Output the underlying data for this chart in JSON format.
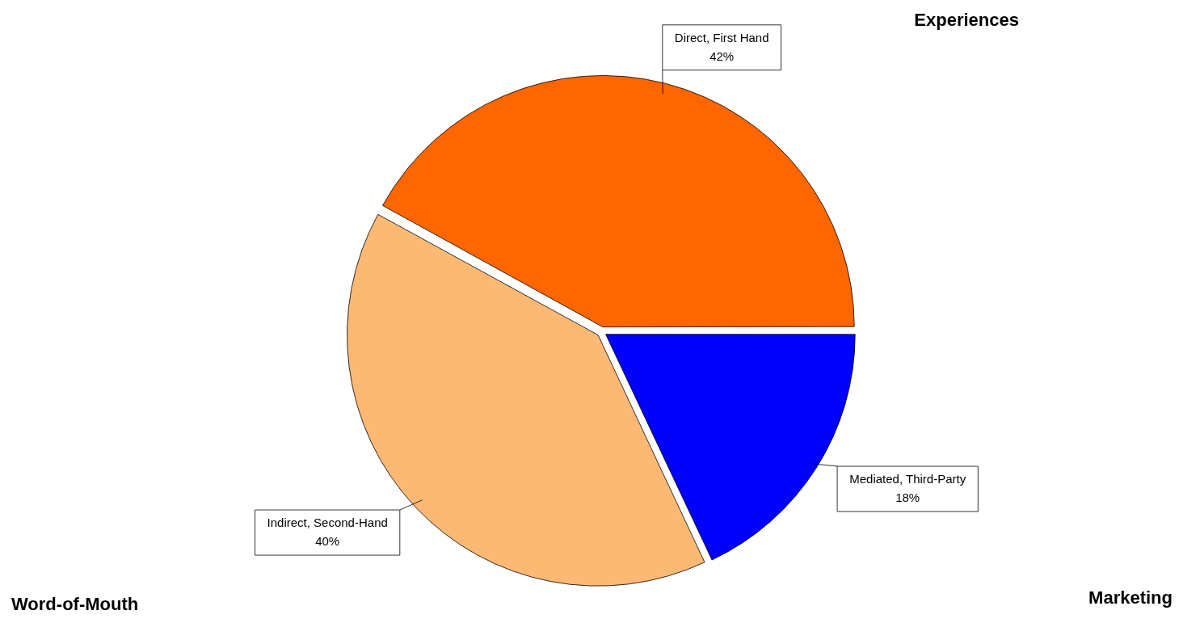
{
  "chart_data": {
    "type": "pie",
    "categories": [
      "Direct, First Hand",
      "Indirect, Second-Hand",
      "Mediated, Third-Party"
    ],
    "values": [
      42,
      40,
      18
    ],
    "colors": [
      "#ff6600",
      "#fdb974",
      "#0000ff"
    ],
    "value_labels": [
      "42%",
      "40%",
      "18%"
    ],
    "legend": false,
    "annotations": [
      "Experiences",
      "Word-of-Mouth",
      "Marketing"
    ]
  }
}
